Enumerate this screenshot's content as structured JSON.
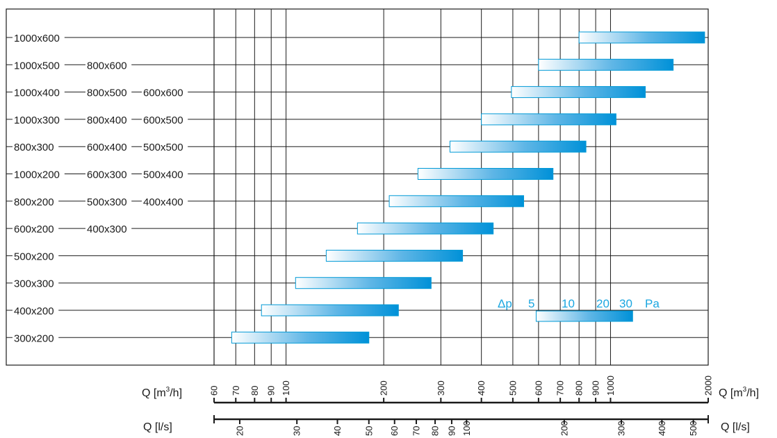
{
  "chart_data": {
    "type": "bar",
    "title": "",
    "xlabel": "Q [m3/h]",
    "x_scale": "log",
    "x_range": [
      60,
      2000
    ],
    "grid": true,
    "colors": {
      "bar_start": "#ffffff",
      "bar_end": "#0091d8",
      "bar_border": "#0099d6",
      "legend_text": "#1aa6e0",
      "axis": "#1a1a1a",
      "grid": "#1a1a1a"
    },
    "axis_m3h": {
      "label_left": "Q [m",
      "label_sup": "3",
      "label_right": "/h]",
      "ticks": [
        60,
        70,
        80,
        90,
        100,
        200,
        300,
        400,
        500,
        600,
        700,
        800,
        900,
        1000,
        2000
      ]
    },
    "axis_ls": {
      "label": "Q [l/s]",
      "ticks": [
        20,
        30,
        40,
        50,
        60,
        70,
        80,
        90,
        100,
        200,
        300,
        400,
        500
      ]
    },
    "rows": [
      {
        "labels": [
          "1000x600"
        ],
        "q_min": 800,
        "q_max": 1950
      },
      {
        "labels": [
          "1000x500",
          "800x600"
        ],
        "q_min": 600,
        "q_max": 1560
      },
      {
        "labels": [
          "1000x400",
          "800x500",
          "600x600"
        ],
        "q_min": 495,
        "q_max": 1280
      },
      {
        "labels": [
          "1000x300",
          "800x400",
          "600x500"
        ],
        "q_min": 400,
        "q_max": 1040
      },
      {
        "labels": [
          "800x300",
          "600x400",
          "500x500"
        ],
        "q_min": 320,
        "q_max": 840
      },
      {
        "labels": [
          "1000x200",
          "600x300",
          "500x400"
        ],
        "q_min": 255,
        "q_max": 665
      },
      {
        "labels": [
          "800x200",
          "500x300",
          "400x400"
        ],
        "q_min": 208,
        "q_max": 540
      },
      {
        "labels": [
          "600x200",
          "400x300"
        ],
        "q_min": 166,
        "q_max": 435
      },
      {
        "labels": [
          "500x200"
        ],
        "q_min": 133,
        "q_max": 350
      },
      {
        "labels": [
          "300x300"
        ],
        "q_min": 107,
        "q_max": 280
      },
      {
        "labels": [
          "400x200"
        ],
        "q_min": 84,
        "q_max": 222
      },
      {
        "labels": [
          "300x200"
        ],
        "q_min": 68,
        "q_max": 180
      }
    ],
    "legend": {
      "label": "Δp",
      "values": [
        "5",
        "10",
        "20",
        "30"
      ],
      "unit": "Pa",
      "q_start": 590,
      "q_end": 1170
    }
  }
}
